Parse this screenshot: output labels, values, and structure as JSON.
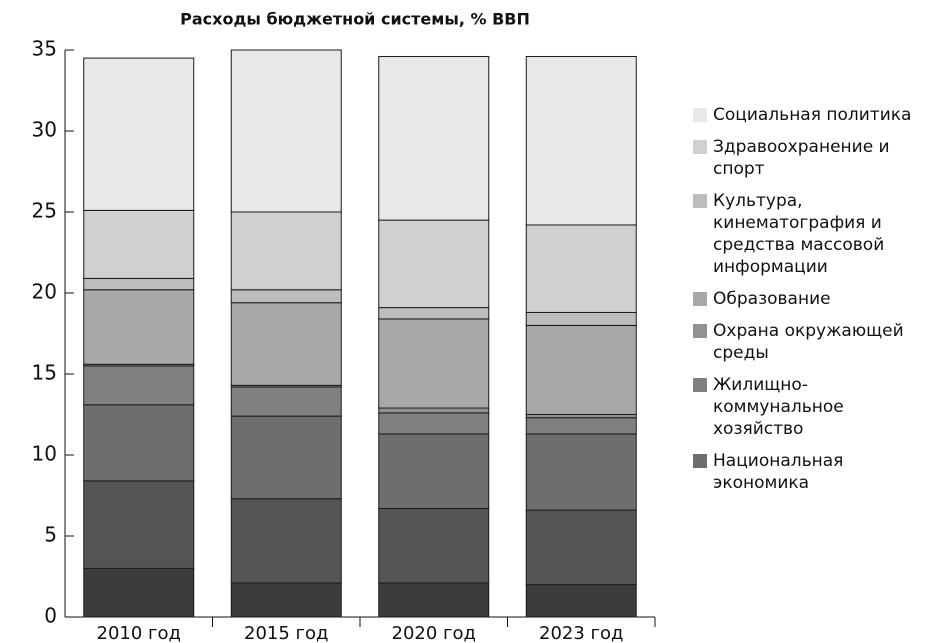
{
  "chart_data": {
    "type": "stacked_bar",
    "title": "Расходы бюджетной системы, % ВВП",
    "categories": [
      "2010 год",
      "2015 год",
      "2020 год",
      "2023 год"
    ],
    "ylim": [
      0,
      35
    ],
    "yticks": [
      0,
      5,
      10,
      15,
      20,
      25,
      30,
      35
    ],
    "series": [
      {
        "color": "#3c3c3c",
        "values": [
          3.0,
          2.1,
          2.1,
          2.0
        ]
      },
      {
        "color": "#555555",
        "values": [
          5.4,
          5.2,
          4.6,
          4.6
        ]
      },
      {
        "name": "Национальная экономика",
        "color": "#6e6e6e",
        "values": [
          4.7,
          5.1,
          4.6,
          4.7
        ]
      },
      {
        "name": "Жилищно-коммунальное хозяйство",
        "color": "#808080",
        "values": [
          2.4,
          1.8,
          1.3,
          1.0
        ]
      },
      {
        "name": "Охрана окружающей среды",
        "color": "#929292",
        "values": [
          0.1,
          0.1,
          0.3,
          0.2
        ]
      },
      {
        "name": "Образование",
        "color": "#a8a8a8",
        "values": [
          4.6,
          5.1,
          5.5,
          5.5
        ]
      },
      {
        "name": "Культура, кинематография и средства массовой информации",
        "color": "#bdbdbd",
        "values": [
          0.7,
          0.8,
          0.7,
          0.8
        ]
      },
      {
        "name": "Здравоохранение и спорт",
        "color": "#d0d0d0",
        "values": [
          4.2,
          4.8,
          5.4,
          5.4
        ]
      },
      {
        "name": "Социальная политика",
        "color": "#e8e8e8",
        "values": [
          9.4,
          10.0,
          10.1,
          10.4
        ]
      }
    ]
  }
}
